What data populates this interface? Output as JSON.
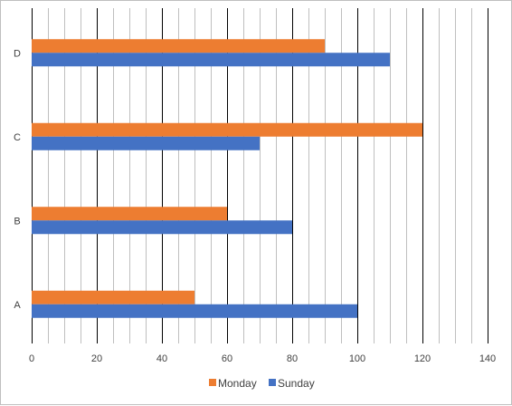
{
  "chart_data": {
    "type": "bar",
    "orientation": "horizontal",
    "categories": [
      "A",
      "B",
      "C",
      "D"
    ],
    "series": [
      {
        "name": "Monday",
        "values": [
          50,
          60,
          120,
          90
        ],
        "color": "#ED7D31"
      },
      {
        "name": "Sunday",
        "values": [
          100,
          80,
          70,
          110
        ],
        "color": "#4472C4"
      }
    ],
    "xlim": [
      0,
      140
    ],
    "x_ticks": [
      "0",
      "20",
      "40",
      "60",
      "80",
      "100",
      "120",
      "140"
    ],
    "major_step": 20,
    "minor_step": 5,
    "grid": true,
    "legend_position": "bottom",
    "title": "",
    "xlabel": "",
    "ylabel": ""
  }
}
